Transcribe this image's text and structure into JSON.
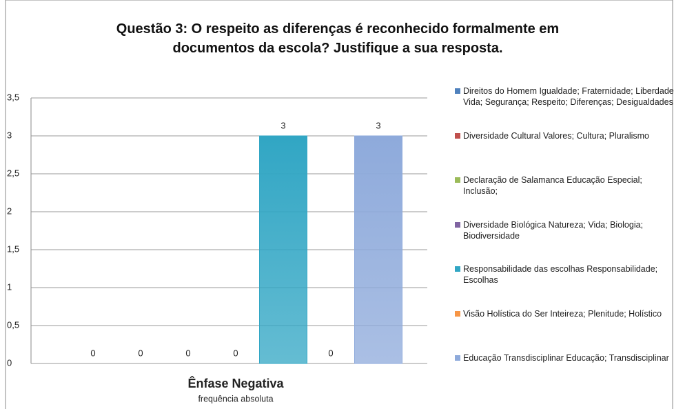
{
  "chart_data": {
    "type": "bar",
    "title": "Questão 3: O respeito as diferenças é reconhecido formalmente em documentos da escola? Justifique a sua resposta.",
    "categories": [
      "Ênfase Negativa"
    ],
    "x_label": "frequência absoluta",
    "series": [
      {
        "name": "Direitos do Homem Igualdade; Fraternidade; Liberdade; Vida; Segurança; Respeito; Diferenças; Desigualdades",
        "color": "#4f81bd",
        "values": [
          0
        ]
      },
      {
        "name": "Diversidade Cultural Valores; Cultura; Pluralismo",
        "color": "#c0504d",
        "values": [
          0
        ]
      },
      {
        "name": "Declaração de Salamanca Educação Especial; Inclusão;",
        "color": "#9bbb59",
        "values": [
          0
        ]
      },
      {
        "name": "Diversidade Biológica Natureza; Vida; Biologia; Biodiversidade",
        "color": "#8064a2",
        "values": [
          0
        ]
      },
      {
        "name": "Responsabilidade das escolhas Responsabilidade; Escolhas",
        "color": "#31a6c4",
        "values": [
          3
        ]
      },
      {
        "name": "Visão Holística do Ser Inteireza;  Plenitude; Holístico",
        "color": "#f79646",
        "values": [
          0
        ]
      },
      {
        "name": "Educação Transdisciplinar Educação; Transdisciplinar",
        "color": "#8eaadb",
        "values": [
          3
        ]
      }
    ],
    "ylim": [
      0,
      3.5
    ],
    "yticks": [
      0,
      {
        "value": 0.5,
        "label": "0,5"
      },
      1,
      {
        "value": 1.5,
        "label": "1,5"
      },
      2,
      {
        "value": 2.5,
        "label": "2,5"
      },
      3,
      {
        "value": 3.5,
        "label": "3,5"
      }
    ],
    "grid": true,
    "legend": "right"
  }
}
